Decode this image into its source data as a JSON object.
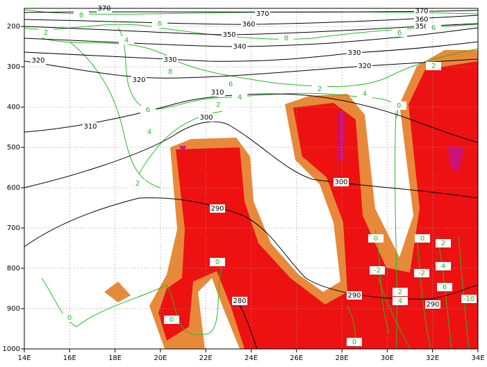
{
  "chart_data": {
    "type": "contour",
    "xlim": [
      14,
      34
    ],
    "ylim": [
      155,
      1000
    ],
    "y_inverted": true,
    "xticks": [
      {
        "value": 14,
        "label": "14E"
      },
      {
        "value": 16,
        "label": "16E"
      },
      {
        "value": 18,
        "label": "18E"
      },
      {
        "value": 20,
        "label": "20E"
      },
      {
        "value": 22,
        "label": "22E"
      },
      {
        "value": 24,
        "label": "24E"
      },
      {
        "value": 26,
        "label": "26E"
      },
      {
        "value": 28,
        "label": "28E"
      },
      {
        "value": 30,
        "label": "30E"
      },
      {
        "value": 32,
        "label": "32E"
      },
      {
        "value": 34,
        "label": "34E"
      }
    ],
    "yticks": [
      200,
      300,
      400,
      500,
      600,
      700,
      800,
      900,
      1000
    ],
    "grid": true,
    "theta_color": "#000000",
    "green_color": "#22bb22",
    "fill_colors": [
      "#e8893a",
      "#ee1111",
      "#cc1177"
    ],
    "theta_labels": [
      370,
      370,
      370,
      360,
      360,
      350,
      350,
      340,
      330,
      330,
      320,
      320,
      320,
      310,
      310,
      300,
      300,
      290,
      290,
      290,
      280
    ],
    "green_labels": [
      8,
      6,
      2,
      4,
      8,
      6,
      6,
      8,
      6,
      4,
      2,
      4,
      6,
      2,
      4,
      2,
      0,
      0,
      0,
      0,
      0,
      0,
      0,
      2,
      4,
      6,
      -2,
      -2,
      2,
      4,
      -10,
      2
    ]
  }
}
